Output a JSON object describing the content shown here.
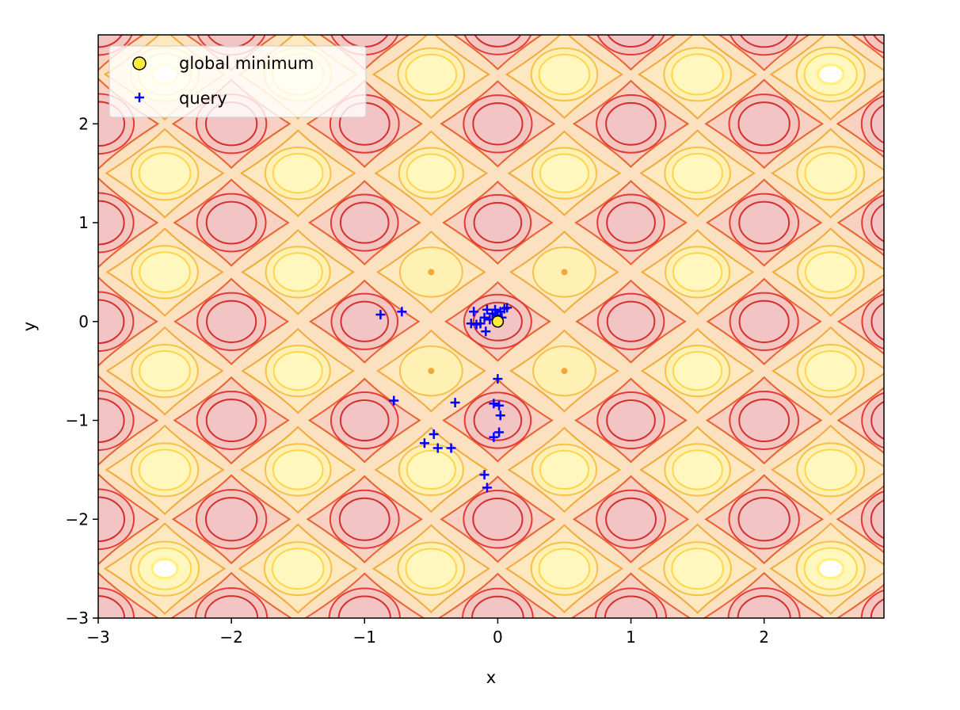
{
  "chart_data": {
    "type": "contour",
    "xlabel": "x",
    "ylabel": "y",
    "xlim": [
      -3,
      2.9
    ],
    "ylim": [
      -3,
      2.9
    ],
    "xticks": [
      -3,
      -2,
      -1,
      0,
      1,
      2
    ],
    "yticks": [
      -3,
      -2,
      -1,
      0,
      1,
      2
    ],
    "xtick_labels": [
      "−3",
      "−2",
      "−1",
      "0",
      "1",
      "2"
    ],
    "ytick_labels": [
      "−3",
      "−2",
      "−1",
      "0",
      "1",
      "2"
    ],
    "grid": false,
    "legend": {
      "position": "top-left",
      "entries": [
        "global minimum",
        "query"
      ]
    },
    "colors": {
      "background": "#fce1c1",
      "low": "#f2c4c4",
      "high": "#fff5b8",
      "peak": "#ffffff",
      "global_minimum_fill": "#ffeb3b",
      "query": "#0000ff"
    },
    "series": [
      {
        "name": "global minimum",
        "kind": "scatter",
        "marker": "circle",
        "points": [
          [
            0.0,
            0.0
          ]
        ]
      },
      {
        "name": "query",
        "kind": "scatter",
        "marker": "plus",
        "points": [
          [
            -0.88,
            0.07
          ],
          [
            -0.72,
            0.1
          ],
          [
            -0.18,
            0.1
          ],
          [
            -0.2,
            -0.02
          ],
          [
            -0.16,
            -0.03
          ],
          [
            -0.1,
            0.04
          ],
          [
            -0.08,
            0.12
          ],
          [
            -0.06,
            0.02
          ],
          [
            -0.04,
            0.08
          ],
          [
            -0.02,
            0.12
          ],
          [
            0.0,
            0.06
          ],
          [
            0.02,
            0.1
          ],
          [
            0.03,
            0.04
          ],
          [
            0.05,
            0.13
          ],
          [
            0.07,
            0.14
          ],
          [
            0.01,
            0.01
          ],
          [
            -0.09,
            -0.1
          ],
          [
            -0.13,
            -0.02
          ],
          [
            0.0,
            -0.58
          ],
          [
            -0.03,
            -0.83
          ],
          [
            0.01,
            -0.85
          ],
          [
            0.02,
            -0.95
          ],
          [
            0.01,
            -1.12
          ],
          [
            -0.03,
            -1.17
          ],
          [
            -0.78,
            -0.8
          ],
          [
            -0.32,
            -0.82
          ],
          [
            -0.48,
            -1.14
          ],
          [
            -0.55,
            -1.23
          ],
          [
            -0.45,
            -1.28
          ],
          [
            -0.35,
            -1.28
          ],
          [
            -0.1,
            -1.55
          ],
          [
            -0.08,
            -1.68
          ]
        ]
      }
    ]
  }
}
